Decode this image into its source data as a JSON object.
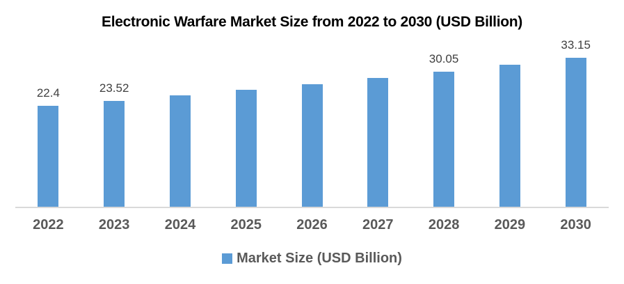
{
  "title": "Electronic Warfare Market Size from 2022 to 2030 (USD Billion)",
  "legend": {
    "label": "Market Size (USD Billion)"
  },
  "colors": {
    "bar": "#5b9bd5",
    "axis_line": "#d9d9d9",
    "axis_label": "#595959",
    "data_label": "#404040",
    "title": "#000000",
    "background": "#ffffff"
  },
  "chart_data": {
    "type": "bar",
    "title": "Electronic Warfare Market Size from 2022 to 2030 (USD Billion)",
    "categories": [
      "2022",
      "2023",
      "2024",
      "2025",
      "2026",
      "2027",
      "2028",
      "2029",
      "2030"
    ],
    "values": [
      22.4,
      23.52,
      24.7,
      25.94,
      27.24,
      28.61,
      30.05,
      31.56,
      33.15
    ],
    "visible_data_labels": [
      "22.4",
      "23.52",
      "",
      "",
      "",
      "",
      "30.05",
      "",
      "33.15"
    ],
    "series_name": "Market Size (USD Billion)",
    "xlabel": "",
    "ylabel": "",
    "ylim": [
      0,
      38.5
    ],
    "grid": false,
    "legend_position": "bottom"
  }
}
